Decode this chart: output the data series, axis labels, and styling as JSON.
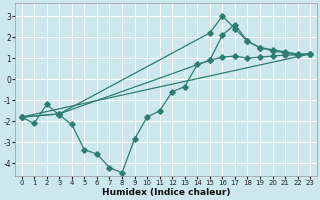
{
  "xlabel": "Humidex (Indice chaleur)",
  "bg_color": "#cce8ec",
  "line_color": "#2e7d6e",
  "grid_color": "#ffffff",
  "xlim": [
    -0.5,
    23.5
  ],
  "ylim": [
    -4.6,
    3.6
  ],
  "yticks": [
    -4,
    -3,
    -2,
    -1,
    0,
    1,
    2,
    3
  ],
  "xticks": [
    0,
    1,
    2,
    3,
    4,
    5,
    6,
    7,
    8,
    9,
    10,
    11,
    12,
    13,
    14,
    15,
    16,
    17,
    18,
    19,
    20,
    21,
    22,
    23
  ],
  "line1_x": [
    0,
    1,
    2,
    3,
    4,
    5,
    6,
    7,
    8,
    9,
    10,
    11,
    12,
    13,
    14,
    15,
    16,
    17,
    18,
    19,
    20,
    21,
    22,
    23
  ],
  "line1_y": [
    -1.8,
    -2.1,
    -1.2,
    -1.7,
    -2.15,
    -3.35,
    -3.55,
    -4.2,
    -4.45,
    -2.85,
    -1.8,
    -1.5,
    -0.6,
    -0.35,
    0.7,
    0.9,
    1.05,
    1.1,
    1.0,
    1.05,
    1.1,
    1.15,
    1.15,
    1.2
  ],
  "line2_x": [
    0,
    23
  ],
  "line2_y": [
    -1.8,
    1.2
  ],
  "line3_x": [
    0,
    3,
    15,
    16,
    17,
    18,
    19,
    20,
    21,
    22,
    23
  ],
  "line3_y": [
    -1.8,
    -1.65,
    2.2,
    3.0,
    2.4,
    1.8,
    1.5,
    1.4,
    1.3,
    1.2,
    1.2
  ],
  "line4_x": [
    0,
    3,
    15,
    16,
    17,
    18,
    19,
    20,
    21,
    22,
    23
  ],
  "line4_y": [
    -1.8,
    -1.65,
    0.9,
    2.1,
    2.6,
    1.8,
    1.5,
    1.35,
    1.25,
    1.15,
    1.2
  ]
}
